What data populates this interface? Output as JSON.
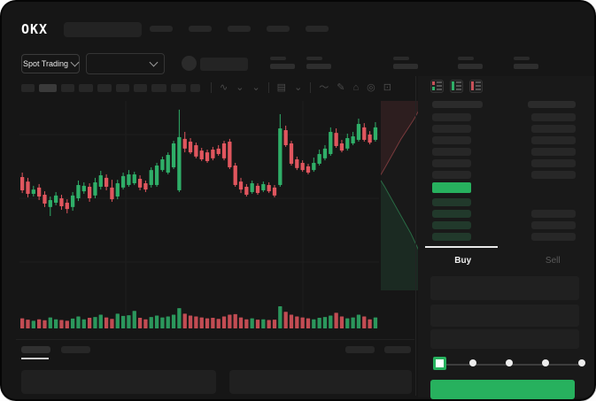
{
  "brand": {
    "logo_text": "OKX"
  },
  "header": {
    "nav_item_count": 5
  },
  "ticker_bar": {
    "market_type_label": "Spot Trading",
    "stat_group_count": 5
  },
  "toolbar": {
    "timeframe_button_count": 10,
    "timeframe_active_index": 1,
    "icons": [
      {
        "name": "chart-type-icon",
        "glyph": "∿"
      },
      {
        "name": "chart-type-chevron-icon",
        "glyph": "⌄"
      },
      {
        "name": "compare-chevron-icon",
        "glyph": "⌄"
      },
      {
        "name": "indicators-icon",
        "glyph": "▤"
      },
      {
        "name": "indicators-chevron-icon",
        "glyph": "⌄"
      },
      {
        "name": "line-tool-icon",
        "glyph": "〜"
      },
      {
        "name": "draw-tool-icon",
        "glyph": "✎"
      },
      {
        "name": "screenshot-icon",
        "glyph": "⌂"
      },
      {
        "name": "chart-settings-icon",
        "glyph": "◎"
      },
      {
        "name": "fullscreen-icon",
        "glyph": "⊡"
      }
    ]
  },
  "chart_data": {
    "type": "candlestick",
    "ylim": [
      0,
      100
    ],
    "grid": true,
    "legend": "none",
    "up_color": "#2fae68",
    "down_color": "#e0565e",
    "ohlc": [
      [
        60.9,
        63.2,
        52.7,
        54.1
      ],
      [
        58.6,
        60.5,
        50.5,
        52.3
      ],
      [
        52.3,
        56.4,
        50.9,
        54.5
      ],
      [
        55.5,
        57.3,
        49.1,
        50.9
      ],
      [
        51.8,
        53.6,
        45.5,
        47.3
      ],
      [
        45.5,
        50.9,
        40.9,
        49.1
      ],
      [
        47.7,
        53.2,
        46.4,
        51.4
      ],
      [
        50.0,
        51.8,
        44.1,
        45.9
      ],
      [
        47.7,
        49.5,
        42.3,
        44.5
      ],
      [
        45.5,
        53.2,
        43.6,
        51.4
      ],
      [
        50.0,
        59.1,
        48.6,
        56.8
      ],
      [
        53.6,
        58.2,
        52.3,
        56.4
      ],
      [
        55.9,
        57.7,
        48.2,
        50.0
      ],
      [
        51.4,
        60.5,
        50.0,
        58.2
      ],
      [
        55.9,
        64.1,
        54.5,
        61.8
      ],
      [
        60.5,
        62.3,
        54.1,
        55.9
      ],
      [
        55.5,
        59.5,
        48.2,
        49.5
      ],
      [
        50.9,
        59.5,
        49.5,
        57.7
      ],
      [
        55.5,
        63.2,
        54.5,
        61.4
      ],
      [
        56.8,
        64.5,
        55.9,
        62.3
      ],
      [
        57.7,
        63.6,
        56.8,
        62.3
      ],
      [
        60.0,
        61.8,
        54.1,
        55.5
      ],
      [
        57.7,
        59.1,
        53.2,
        54.5
      ],
      [
        56.8,
        65.9,
        55.5,
        64.5
      ],
      [
        56.8,
        68.2,
        55.9,
        66.8
      ],
      [
        64.5,
        71.4,
        63.6,
        70.0
      ],
      [
        63.2,
        73.6,
        62.3,
        72.3
      ],
      [
        65.9,
        79.5,
        65.0,
        78.2
      ],
      [
        54.1,
        95.5,
        53.2,
        81.4
      ],
      [
        80.5,
        84.1,
        73.6,
        75.5
      ],
      [
        79.1,
        80.9,
        72.7,
        73.6
      ],
      [
        77.3,
        78.6,
        70.5,
        71.4
      ],
      [
        74.5,
        75.9,
        69.1,
        70.0
      ],
      [
        73.6,
        75.0,
        68.2,
        69.1
      ],
      [
        75.0,
        76.4,
        69.5,
        70.5
      ],
      [
        75.5,
        77.3,
        71.8,
        72.7
      ],
      [
        78.2,
        79.5,
        69.5,
        70.5
      ],
      [
        79.1,
        80.5,
        65.0,
        65.9
      ],
      [
        66.8,
        68.2,
        55.9,
        56.8
      ],
      [
        58.6,
        60.5,
        52.7,
        54.5
      ],
      [
        55.9,
        57.3,
        50.9,
        51.8
      ],
      [
        53.2,
        59.1,
        52.3,
        57.7
      ],
      [
        56.4,
        57.7,
        51.8,
        52.7
      ],
      [
        54.1,
        58.6,
        53.2,
        57.3
      ],
      [
        56.8,
        58.2,
        52.7,
        53.6
      ],
      [
        55.5,
        56.8,
        50.5,
        51.4
      ],
      [
        56.8,
        93.2,
        55.9,
        85.9
      ],
      [
        85.0,
        87.3,
        76.4,
        77.3
      ],
      [
        78.2,
        79.5,
        66.8,
        67.7
      ],
      [
        70.0,
        71.4,
        64.5,
        65.5
      ],
      [
        68.2,
        69.5,
        63.6,
        64.5
      ],
      [
        66.4,
        67.7,
        62.3,
        63.2
      ],
      [
        64.5,
        70.9,
        63.6,
        68.2
      ],
      [
        67.7,
        75.0,
        66.8,
        72.7
      ],
      [
        70.5,
        77.3,
        69.5,
        75.5
      ],
      [
        72.7,
        86.4,
        71.8,
        84.1
      ],
      [
        83.6,
        85.9,
        75.9,
        76.8
      ],
      [
        78.2,
        80.0,
        73.6,
        74.5
      ],
      [
        75.5,
        83.2,
        74.5,
        80.9
      ],
      [
        78.2,
        84.1,
        77.3,
        81.8
      ],
      [
        80.0,
        90.9,
        79.1,
        88.2
      ],
      [
        86.4,
        88.6,
        79.1,
        80.0
      ],
      [
        82.7,
        84.5,
        77.7,
        78.6
      ],
      [
        80.0,
        89.1,
        79.1,
        86.4
      ]
    ],
    "volume": [
      35,
      28,
      22,
      30,
      25,
      40,
      30,
      26,
      22,
      34,
      45,
      30,
      38,
      42,
      55,
      40,
      32,
      60,
      48,
      52,
      75,
      38,
      30,
      42,
      50,
      40,
      45,
      55,
      90,
      60,
      50,
      45,
      40,
      35,
      38,
      32,
      45,
      55,
      58,
      40,
      30,
      35,
      28,
      30,
      26,
      28,
      100,
      70,
      55,
      45,
      40,
      35,
      30,
      38,
      42,
      50,
      65,
      45,
      35,
      40,
      55,
      45,
      30,
      40
    ],
    "depth": {
      "asks_curve": [
        [
          0.39,
          0.0
        ],
        [
          0.35,
          0.1
        ],
        [
          0.3,
          0.22
        ],
        [
          0.25,
          0.34
        ],
        [
          0.2,
          0.46
        ],
        [
          0.15,
          0.6
        ],
        [
          0.1,
          0.74
        ],
        [
          0.05,
          0.86
        ],
        [
          0.02,
          0.94
        ],
        [
          0.0,
          1.0
        ]
      ],
      "bids_curve": [
        [
          0.42,
          0.0
        ],
        [
          0.45,
          0.08
        ],
        [
          0.5,
          0.2
        ],
        [
          0.55,
          0.32
        ],
        [
          0.6,
          0.44
        ],
        [
          0.65,
          0.56
        ],
        [
          0.7,
          0.68
        ],
        [
          0.75,
          0.78
        ],
        [
          0.8,
          0.88
        ],
        [
          0.85,
          1.0
        ]
      ]
    }
  },
  "orderbook": {
    "view_icons": [
      "orderbook-combined-icon",
      "orderbook-bids-icon",
      "orderbook-asks-icon"
    ],
    "ask_row_count": 6,
    "bid_row_count": 4,
    "last_price_highlight": "green"
  },
  "trade_panel": {
    "tabs": [
      {
        "label": "Buy",
        "active": true
      },
      {
        "label": "Sell",
        "active": false
      }
    ],
    "input_row_count": 3,
    "slider": {
      "steps": 5,
      "selected_index": 0
    },
    "submit_button_label": ""
  },
  "colors": {
    "bg": "#161616",
    "sk": "#272727",
    "green": "#27b15e",
    "red": "#e1565e",
    "muted": "#5a5a5a"
  }
}
